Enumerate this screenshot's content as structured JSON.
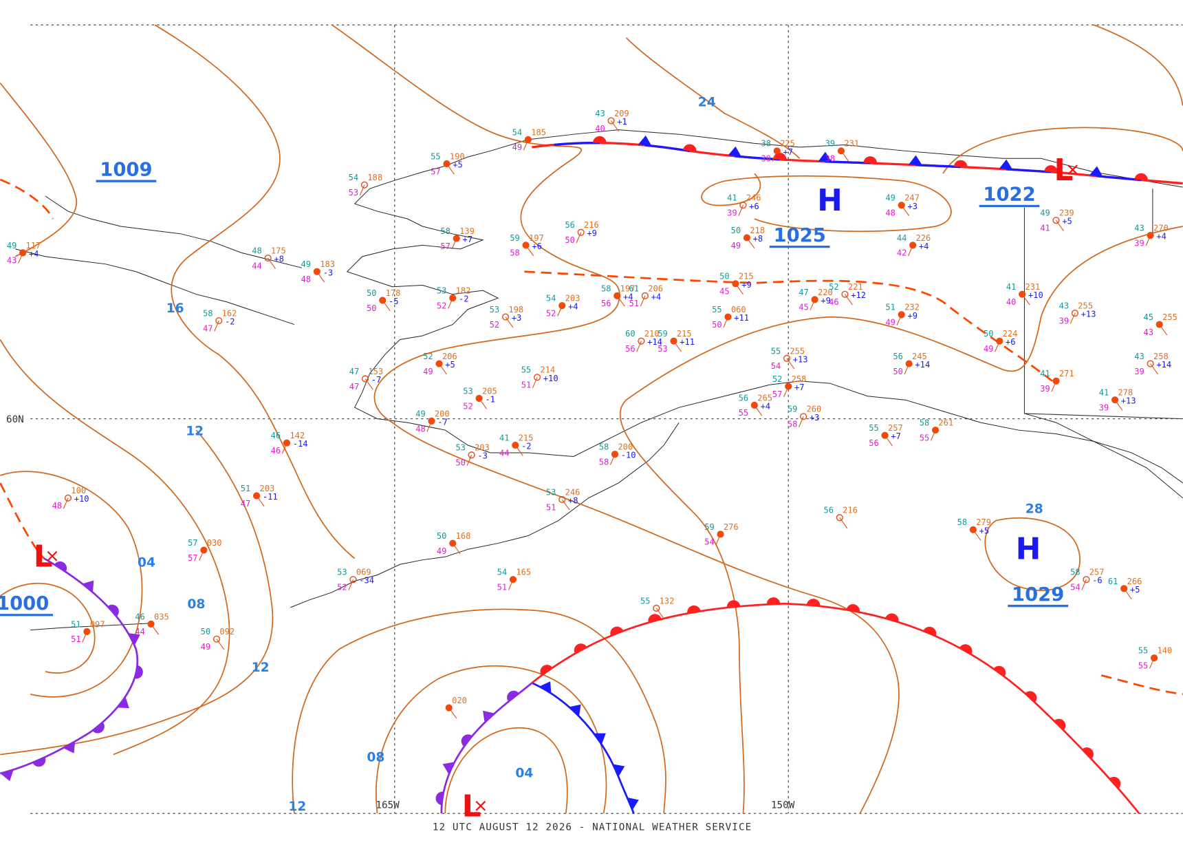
{
  "map": {
    "footer": "12 UTC AUGUST 12 2026 - NATIONAL WEATHER SERVICE",
    "grid_labels": [
      "60N",
      "165W",
      "150W"
    ],
    "centers": [
      {
        "symbol": "H",
        "label": "1025"
      },
      {
        "symbol": "H",
        "label": "1029"
      },
      {
        "symbol": "L",
        "label": "1022"
      },
      {
        "symbol": "L",
        "label": "1000"
      },
      {
        "symbol": "L"
      }
    ],
    "pressure_labels": [
      "1009"
    ],
    "isobar_labels": [
      "24",
      "16",
      "12",
      "12",
      "12",
      "08",
      "08",
      "04",
      "04",
      "28"
    ],
    "stations": [
      {
        "t": "54",
        "p": "188",
        "d": "53"
      },
      {
        "t": "55",
        "p": "190",
        "d": "57",
        "c": "+5"
      },
      {
        "t": "54",
        "p": "185",
        "d": "49"
      },
      {
        "t": "43",
        "p": "209",
        "d": "40",
        "c": "+1"
      },
      {
        "t": "38",
        "p": "225",
        "d": "39",
        "c": "+7"
      },
      {
        "t": "39",
        "p": "231",
        "d": "38"
      },
      {
        "t": "41",
        "p": "246",
        "d": "39",
        "c": "+6"
      },
      {
        "t": "49",
        "p": "247",
        "d": "48",
        "c": "+3"
      },
      {
        "t": "44",
        "p": "226",
        "d": "42",
        "c": "+4"
      },
      {
        "t": "49",
        "p": "239",
        "d": "41",
        "c": "+5"
      },
      {
        "t": "43",
        "p": "270",
        "d": "39",
        "c": "+4"
      },
      {
        "t": "50",
        "p": "218",
        "d": "49",
        "c": "+8"
      },
      {
        "t": "56",
        "p": "216",
        "d": "50",
        "c": "+9"
      },
      {
        "t": "59",
        "p": "197",
        "d": "58",
        "c": "+6"
      },
      {
        "t": "58",
        "p": "139",
        "d": "57",
        "c": "+7"
      },
      {
        "t": "48",
        "p": "175",
        "d": "44",
        "c": "+8"
      },
      {
        "t": "49",
        "p": "117",
        "d": "43",
        "c": "+4"
      },
      {
        "t": "49",
        "p": "183",
        "d": "48",
        "c": "-3"
      },
      {
        "t": "58",
        "p": "162",
        "d": "47",
        "c": "-2"
      },
      {
        "t": "50",
        "p": "178",
        "d": "50",
        "c": "-5"
      },
      {
        "t": "53",
        "p": "182",
        "d": "52",
        "c": "-2"
      },
      {
        "t": "53",
        "p": "198",
        "d": "52",
        "c": "+3"
      },
      {
        "t": "54",
        "p": "203",
        "d": "52",
        "c": "+4"
      },
      {
        "t": "58",
        "p": "197",
        "d": "56",
        "c": "+4"
      },
      {
        "t": "61",
        "p": "206",
        "d": "51",
        "c": "+4"
      },
      {
        "t": "50",
        "p": "215",
        "d": "45",
        "c": "+9"
      },
      {
        "t": "47",
        "p": "220",
        "d": "45",
        "c": "+9"
      },
      {
        "t": "52",
        "p": "221",
        "d": "46",
        "c": "+12"
      },
      {
        "t": "51",
        "p": "232",
        "d": "49",
        "c": "+9"
      },
      {
        "t": "41",
        "p": "231",
        "d": "40",
        "c": "+10"
      },
      {
        "t": "43",
        "p": "255",
        "d": "39",
        "c": "+13"
      },
      {
        "t": "45",
        "p": "255",
        "d": "43"
      },
      {
        "t": "50",
        "p": "224",
        "d": "49",
        "c": "+6"
      },
      {
        "t": "43",
        "p": "258",
        "d": "39",
        "c": "+14"
      },
      {
        "t": "41",
        "p": "271",
        "d": "39"
      },
      {
        "t": "41",
        "p": "278",
        "d": "39",
        "c": "+13"
      },
      {
        "t": "60",
        "p": "210",
        "d": "56",
        "c": "+14"
      },
      {
        "t": "59",
        "p": "215",
        "d": "53",
        "c": "+11"
      },
      {
        "t": "55",
        "p": "060",
        "d": "50",
        "c": "+11"
      },
      {
        "t": "55",
        "p": "255",
        "d": "54",
        "c": "+13"
      },
      {
        "t": "56",
        "p": "245",
        "d": "50",
        "c": "+14"
      },
      {
        "t": "52",
        "p": "206",
        "d": "49",
        "c": "+5"
      },
      {
        "t": "55",
        "p": "214",
        "d": "51",
        "c": "+10"
      },
      {
        "t": "53",
        "p": "205",
        "d": "52",
        "c": "-1"
      },
      {
        "t": "49",
        "p": "200",
        "d": "48",
        "c": "-7"
      },
      {
        "t": "47",
        "p": "153",
        "d": "47",
        "c": "-7"
      },
      {
        "t": "46",
        "p": "142",
        "d": "46",
        "c": "-14"
      },
      {
        "t": "51",
        "p": "203",
        "d": "47",
        "c": "-11"
      },
      {
        "t": "53",
        "p": "203",
        "d": "50",
        "c": "-3"
      },
      {
        "t": "41",
        "p": "215",
        "d": "44",
        "c": "-2"
      },
      {
        "t": "58",
        "p": "200",
        "d": "58",
        "c": "-10"
      },
      {
        "t": "53",
        "p": "246",
        "d": "51",
        "c": "+8"
      },
      {
        "t": "52",
        "p": "258",
        "d": "57",
        "c": "+7"
      },
      {
        "t": "56",
        "p": "265",
        "d": "55",
        "c": "+4"
      },
      {
        "t": "59",
        "p": "260",
        "d": "58",
        "c": "+3"
      },
      {
        "t": "55",
        "p": "257",
        "d": "56",
        "c": "+7"
      },
      {
        "t": "58",
        "p": "261",
        "d": "55"
      },
      {
        "t": "56",
        "p": "216"
      },
      {
        "t": "59",
        "p": "276",
        "d": "54"
      },
      {
        "t": "58",
        "p": "279",
        "c": "+5"
      },
      {
        "t": "58",
        "p": "257",
        "d": "54",
        "c": "-6"
      },
      {
        "t": "61",
        "p": "266",
        "c": "+5"
      },
      {
        "t": "55",
        "p": "140",
        "d": "55"
      },
      {
        "t": "55",
        "p": "132"
      },
      {
        "t": "54",
        "p": "165",
        "d": "51"
      },
      {
        "t": "50",
        "p": "168",
        "d": "49"
      },
      {
        "t": "53",
        "p": "069",
        "d": "52",
        "c": "-34"
      },
      {
        "t": "46",
        "p": "035",
        "d": "44"
      },
      {
        "t": "51",
        "p": "097",
        "d": "51"
      },
      {
        "t": "50",
        "p": "092",
        "d": "49"
      },
      {
        "t": "57",
        "p": "030",
        "d": "57"
      },
      {
        "p": "020"
      },
      {
        "p": "100",
        "d": "48",
        "c": "+10"
      }
    ]
  }
}
